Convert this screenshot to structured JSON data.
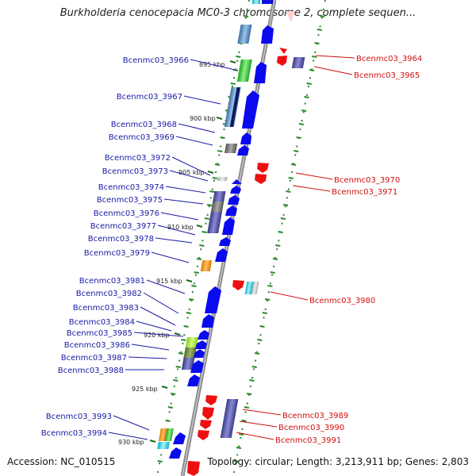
{
  "title": "Burkholderia cenocepacia MC0-3 chromosome 2, complete sequen...",
  "footer": {
    "accession": "Accession: NC_010515",
    "summary": "Topology: circular; Length: 3,213,911 bp; Genes: 2,803"
  },
  "scale_labels": [
    "895 kbp",
    "900 kbp",
    "905 kbp",
    "910 kbp",
    "915 kbp",
    "920 kbp",
    "925 kbp",
    "930 kbp"
  ],
  "left_genes": [
    "Bcenmc03_3966",
    "Bcenmc03_3967",
    "Bcenmc03_3968",
    "Bcenmc03_3969",
    "Bcenmc03_3972",
    "Bcenmc03_3973",
    "Bcenmc03_3974",
    "Bcenmc03_3975",
    "Bcenmc03_3976",
    "Bcenmc03_3977",
    "Bcenmc03_3978",
    "Bcenmc03_3979",
    "Bcenmc03_3981",
    "Bcenmc03_3982",
    "Bcenmc03_3983",
    "Bcenmc03_3984",
    "Bcenmc03_3985",
    "Bcenmc03_3986",
    "Bcenmc03_3987",
    "Bcenmc03_3988",
    "Bcenmc03_3993",
    "Bcenmc03_3994"
  ],
  "right_genes": [
    "Bcenmc03_3964",
    "Bcenmc03_3965",
    "Bcenmc03_3970",
    "Bcenmc03_3971",
    "Bcenmc03_3980",
    "Bcenmc03_3989",
    "Bcenmc03_3990",
    "Bcenmc03_3991"
  ],
  "colors": {
    "forward_label": "#1a1aa6",
    "reverse_label": "#d11010",
    "forward_arrow": "#0a0aee",
    "reverse_arrow": "#ee1010",
    "backbone": "#8c8c8c",
    "ticks": "#2a8a2a"
  }
}
